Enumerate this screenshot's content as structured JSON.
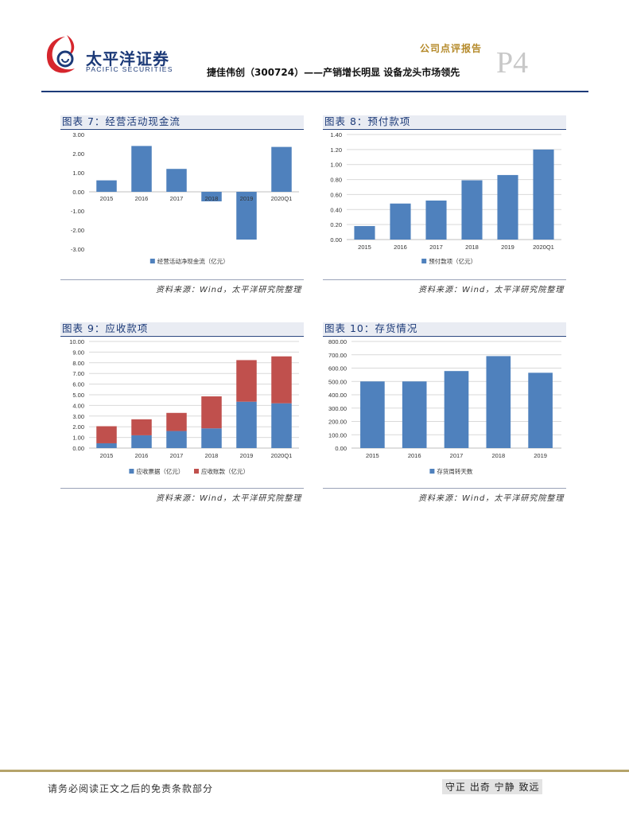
{
  "header": {
    "logo_cn": "太平洋证券",
    "logo_en": "PACIFIC SECURITIES",
    "report_type": "公司点评报告",
    "page_label": "P4",
    "title": "捷佳伟创（300724）——产销增长明显 设备龙头市场领先"
  },
  "colors": {
    "blue": "#4f81bd",
    "red": "#c0504d",
    "navy": "#1c3a78"
  },
  "panels": [
    {
      "title": "图表 7：经营活动现金流",
      "source": "资料来源：Wind，太平洋研究院整理"
    },
    {
      "title": "图表 8：预付款项",
      "source": "资料来源：Wind，太平洋研究院整理"
    },
    {
      "title": "图表 9：应收款项",
      "source": "资料来源：Wind，太平洋研究院整理"
    },
    {
      "title": "图表 10：存货情况",
      "source": "资料来源：Wind，太平洋研究院整理"
    }
  ],
  "chart_data": [
    {
      "type": "bar",
      "categories": [
        "2015",
        "2016",
        "2017",
        "2018",
        "2019",
        "2020Q1"
      ],
      "series": [
        {
          "name": "经营活动净现金流（亿元）",
          "values": [
            0.6,
            2.4,
            1.2,
            -0.5,
            -2.5,
            2.35
          ]
        }
      ],
      "ylim": [
        -3,
        3
      ],
      "ticks": [
        "3.00",
        "2.00",
        "1.00",
        "0.00",
        "-1.00",
        "-2.00",
        "-3.00"
      ],
      "grid": false,
      "legend": "bottom"
    },
    {
      "type": "bar",
      "categories": [
        "2015",
        "2016",
        "2017",
        "2018",
        "2019",
        "2020Q1"
      ],
      "series": [
        {
          "name": "预付款项（亿元）",
          "values": [
            0.18,
            0.48,
            0.52,
            0.79,
            0.86,
            1.2
          ]
        }
      ],
      "ylim": [
        0,
        1.4
      ],
      "ticks": [
        "1.40",
        "1.20",
        "1.00",
        "0.80",
        "0.60",
        "0.40",
        "0.20",
        "0.00"
      ],
      "grid": true,
      "legend": "bottom"
    },
    {
      "type": "bar",
      "stacked": true,
      "categories": [
        "2015",
        "2016",
        "2017",
        "2018",
        "2019",
        "2020Q1"
      ],
      "series": [
        {
          "name": "应收票据（亿元）",
          "values": [
            0.45,
            1.2,
            1.6,
            1.85,
            4.35,
            4.2
          ]
        },
        {
          "name": "应收账款（亿元）",
          "values": [
            1.6,
            1.5,
            1.7,
            3.0,
            3.9,
            4.4
          ]
        }
      ],
      "ylim": [
        0,
        10
      ],
      "ticks": [
        "10.00",
        "9.00",
        "8.00",
        "7.00",
        "6.00",
        "5.00",
        "4.00",
        "3.00",
        "2.00",
        "1.00",
        "0.00"
      ],
      "grid": true,
      "legend": "bottom"
    },
    {
      "type": "bar",
      "categories": [
        "2015",
        "2016",
        "2017",
        "2018",
        "2019"
      ],
      "series": [
        {
          "name": "存货周转天数",
          "values": [
            500,
            500,
            578,
            690,
            565
          ]
        }
      ],
      "ylim": [
        0,
        800
      ],
      "ticks": [
        "800.00",
        "700.00",
        "600.00",
        "500.00",
        "400.00",
        "300.00",
        "200.00",
        "100.00",
        "0.00"
      ],
      "grid": true,
      "legend": "bottom"
    }
  ],
  "footer": {
    "disclaimer": "请务必阅读正文之后的免责条款部分",
    "slogan": "守正 出奇 宁静 致远"
  }
}
